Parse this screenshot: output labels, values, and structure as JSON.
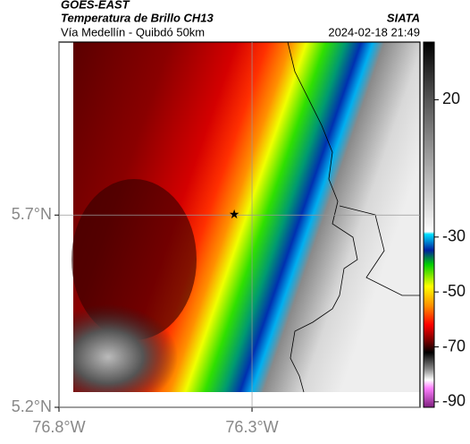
{
  "header": {
    "product": "GOES-EAST",
    "title": "Temperatura de Brillo CH13",
    "subtitle": "Vía Medellín - Quibdó 50km",
    "source": "SIATA",
    "datetime": "2024-02-18 21:49"
  },
  "map": {
    "xlim": [
      -76.8,
      -75.865
    ],
    "ylim": [
      5.2,
      6.15
    ],
    "xticks": [
      {
        "value": -76.8,
        "label": "76.8°W"
      },
      {
        "value": -76.3,
        "label": "76.3°W"
      }
    ],
    "yticks": [
      {
        "value": 5.7,
        "label": "5.7°N"
      },
      {
        "value": 5.2,
        "label": "5.2°N"
      }
    ],
    "grid": true,
    "marker": {
      "lon": -76.346,
      "lat": 5.7
    }
  },
  "colorbar": {
    "lim": [
      -92,
      41
    ],
    "ticks": [
      20,
      -30,
      -50,
      -70,
      -90
    ]
  }
}
